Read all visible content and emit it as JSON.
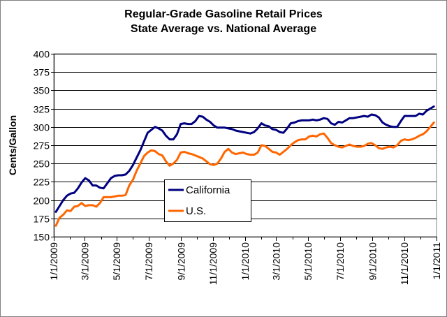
{
  "chart_data": {
    "type": "line",
    "title": "Regular-Grade Gasoline Retail Prices",
    "subtitle": "State Average vs. National Average",
    "xlabel": "",
    "ylabel": "Cents/Gallon",
    "ylim": [
      150,
      400
    ],
    "yticks": [
      150,
      175,
      200,
      225,
      250,
      275,
      300,
      325,
      350,
      375,
      400
    ],
    "xlim": [
      "1/1/2009",
      "1/1/2011"
    ],
    "xticks": [
      "1/1/2009",
      "3/1/2009",
      "5/1/2009",
      "7/1/2009",
      "9/1/2009",
      "11/1/2009",
      "1/1/2010",
      "3/1/2010",
      "5/1/2010",
      "7/1/2010",
      "9/1/2010",
      "11/1/2010",
      "1/1/2011"
    ],
    "grid": "horizontal",
    "legend_position": "center-left",
    "x": [
      "1/5/2009",
      "1/12/2009",
      "1/19/2009",
      "1/26/2009",
      "2/2/2009",
      "2/9/2009",
      "2/16/2009",
      "2/23/2009",
      "3/2/2009",
      "3/9/2009",
      "3/16/2009",
      "3/23/2009",
      "3/30/2009",
      "4/6/2009",
      "4/13/2009",
      "4/20/2009",
      "4/27/2009",
      "5/4/2009",
      "5/11/2009",
      "5/18/2009",
      "5/25/2009",
      "6/1/2009",
      "6/8/2009",
      "6/15/2009",
      "6/22/2009",
      "6/29/2009",
      "7/6/2009",
      "7/13/2009",
      "7/20/2009",
      "7/27/2009",
      "8/3/2009",
      "8/10/2009",
      "8/17/2009",
      "8/24/2009",
      "8/31/2009",
      "9/7/2009",
      "9/14/2009",
      "9/21/2009",
      "9/28/2009",
      "10/5/2009",
      "10/12/2009",
      "10/19/2009",
      "10/26/2009",
      "11/2/2009",
      "11/9/2009",
      "11/16/2009",
      "11/23/2009",
      "11/30/2009",
      "12/7/2009",
      "12/14/2009",
      "12/21/2009",
      "12/28/2009",
      "1/4/2010",
      "1/11/2010",
      "1/18/2010",
      "1/25/2010",
      "2/1/2010",
      "2/8/2010",
      "2/15/2010",
      "2/22/2010",
      "3/1/2010",
      "3/8/2010",
      "3/15/2010",
      "3/22/2010",
      "3/29/2010",
      "4/5/2010",
      "4/12/2010",
      "4/19/2010",
      "4/26/2010",
      "5/3/2010",
      "5/10/2010",
      "5/17/2010",
      "5/24/2010",
      "5/31/2010",
      "6/7/2010",
      "6/14/2010",
      "6/21/2010",
      "6/28/2010",
      "7/5/2010",
      "7/12/2010",
      "7/19/2010",
      "7/26/2010",
      "8/2/2010",
      "8/9/2010",
      "8/16/2010",
      "8/23/2010",
      "8/30/2010",
      "9/6/2010",
      "9/13/2010",
      "9/20/2010",
      "9/27/2010",
      "10/4/2010",
      "10/11/2010",
      "10/18/2010",
      "10/25/2010",
      "11/1/2010",
      "11/8/2010",
      "11/15/2010",
      "11/22/2010",
      "11/29/2010",
      "12/6/2010",
      "12/13/2010",
      "12/20/2010",
      "12/27/2010"
    ],
    "series": [
      {
        "name": "California",
        "color": "#000080",
        "values": [
          184,
          192,
          200,
          206,
          209,
          210,
          216,
          224,
          230,
          227,
          220,
          220,
          217,
          216,
          223,
          230,
          233,
          234,
          234,
          235,
          240,
          248,
          258,
          268,
          280,
          292,
          296,
          300,
          298,
          295,
          288,
          283,
          283,
          290,
          304,
          305,
          304,
          304,
          308,
          315,
          314,
          310,
          307,
          302,
          299,
          299,
          299,
          298,
          297,
          295,
          294,
          293,
          292,
          291,
          293,
          298,
          305,
          302,
          301,
          297,
          296,
          293,
          292,
          298,
          305,
          306,
          308,
          309,
          309,
          309,
          310,
          309,
          310,
          312,
          311,
          305,
          303,
          307,
          306,
          309,
          312,
          312,
          313,
          314,
          315,
          314,
          317,
          316,
          313,
          306,
          303,
          301,
          300,
          300,
          308,
          315,
          315,
          315,
          315,
          318,
          317,
          322,
          325,
          328
        ]
      },
      {
        "name": "U.S.",
        "color": "#FF6600",
        "values": [
          165,
          176,
          180,
          186,
          185,
          191,
          192,
          196,
          192,
          193,
          193,
          191,
          196,
          204,
          204,
          204,
          205,
          206,
          206,
          207,
          220,
          228,
          240,
          250,
          260,
          265,
          268,
          267,
          263,
          261,
          253,
          247,
          250,
          255,
          265,
          266,
          264,
          263,
          261,
          259,
          257,
          253,
          249,
          248,
          250,
          257,
          266,
          270,
          265,
          263,
          264,
          265,
          263,
          262,
          262,
          265,
          275,
          274,
          270,
          266,
          265,
          262,
          266,
          270,
          275,
          279,
          282,
          283,
          283,
          287,
          288,
          287,
          290,
          291,
          285,
          278,
          275,
          273,
          272,
          274,
          276,
          274,
          273,
          273,
          274,
          277,
          278,
          275,
          271,
          270,
          272,
          273,
          272,
          275,
          281,
          283,
          282,
          283,
          285,
          288,
          290,
          294,
          300,
          306
        ]
      }
    ]
  }
}
